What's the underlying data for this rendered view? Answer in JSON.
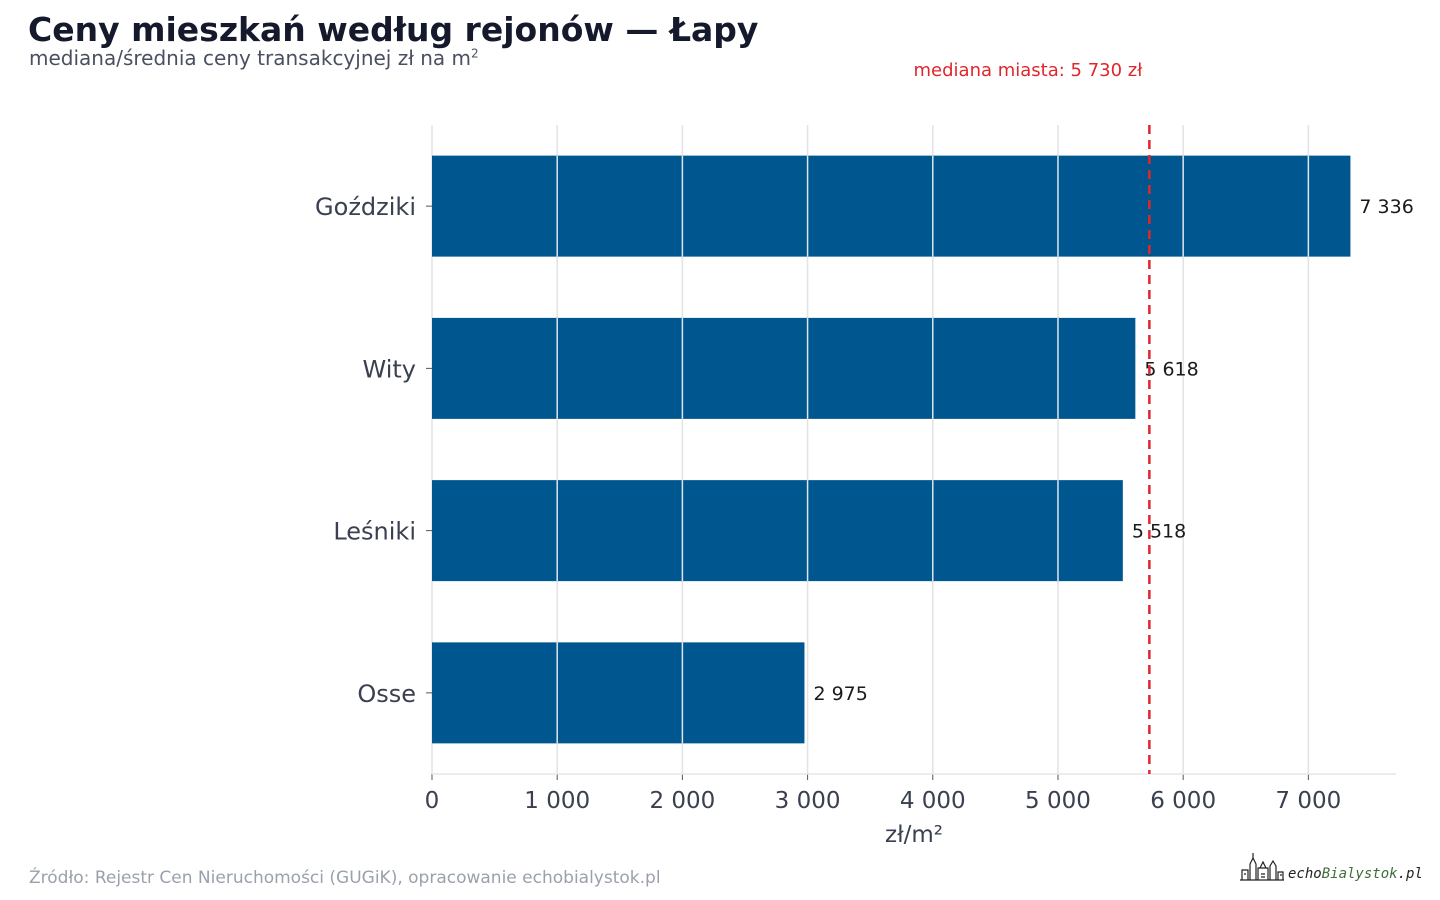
{
  "title": "Ceny mieszkań według rejonów — Łapy",
  "subtitle": "mediana/średnia ceny transakcyjnej zł na m",
  "subtitle_sup": "2",
  "source": "Źródło: Rejestr Cen Nieruchomości (GUGiK), opracowanie echobialystok.pl",
  "logo": {
    "part1": "echo",
    "part2": "Bialystok",
    "part3": ".pl"
  },
  "colors": {
    "bar": "#00568f",
    "median_line": "#e0262d",
    "grid": "#e3e3e3",
    "axis_text": "#3a4050"
  },
  "chart_data": {
    "type": "bar",
    "orientation": "horizontal",
    "categories": [
      "Goździki",
      "Wity",
      "Leśniki",
      "Osse"
    ],
    "values": [
      7336,
      5618,
      5518,
      2975
    ],
    "value_labels": [
      "7 336",
      "5 618",
      "5 518",
      "2 975"
    ],
    "xlabel": "zł/m²",
    "xlim": [
      0,
      7700
    ],
    "xticks": [
      0,
      1000,
      2000,
      3000,
      4000,
      5000,
      6000,
      7000
    ],
    "xtick_labels": [
      "0",
      "1 000",
      "2 000",
      "3 000",
      "4 000",
      "5 000",
      "6 000",
      "7 000"
    ],
    "grid": "vertical",
    "reference_line": {
      "value": 5730,
      "label": "mediana miasta: 5 730 zł",
      "style": "dashed"
    }
  }
}
